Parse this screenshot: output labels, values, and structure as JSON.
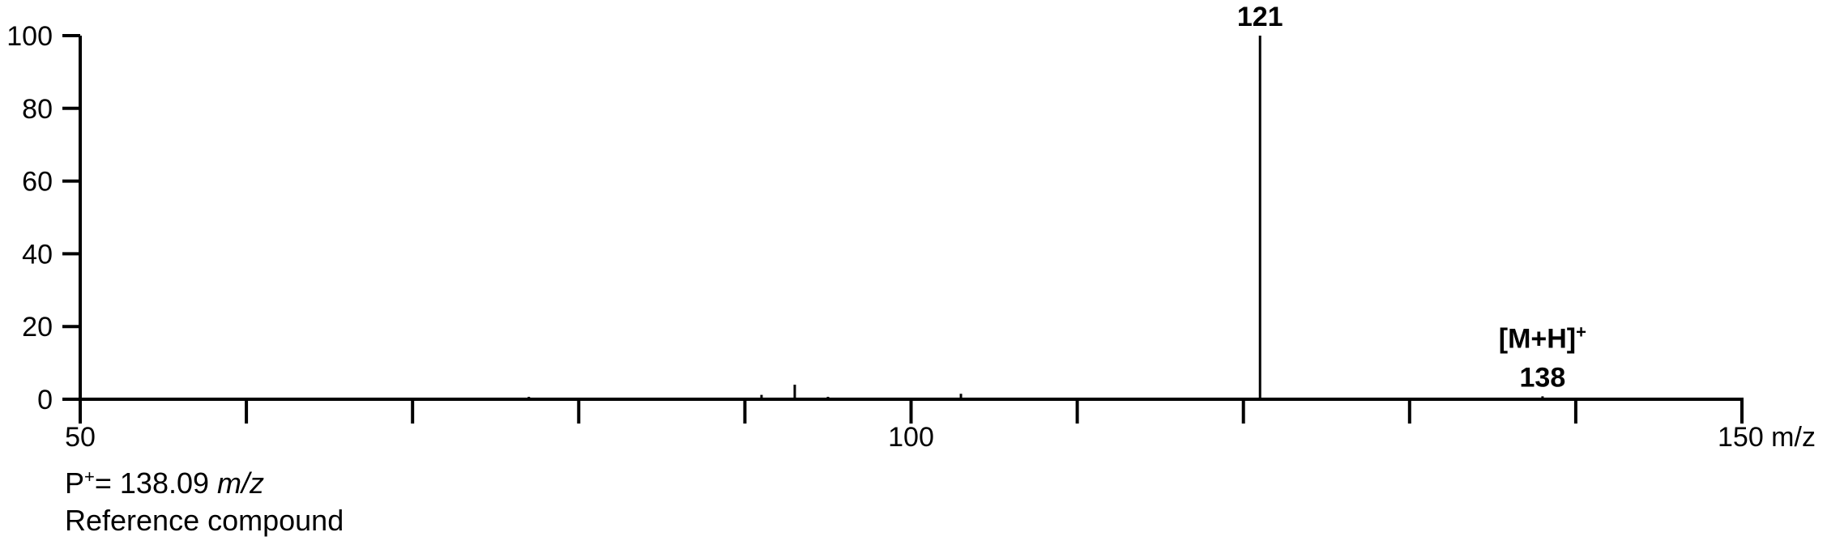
{
  "chart_data": {
    "type": "bar",
    "x_axis": {
      "min": 50,
      "max": 150,
      "ticks": [
        50,
        60,
        70,
        80,
        90,
        100,
        110,
        120,
        130,
        140,
        150
      ],
      "labeled_ticks": [
        "50",
        "100",
        "150"
      ],
      "unit_label": "m/z"
    },
    "y_axis": {
      "min": 0,
      "max": 100,
      "ticks": [
        "0",
        "20",
        "40",
        "60",
        "80",
        "100"
      ]
    },
    "peaks": [
      {
        "mz": 77,
        "intensity": 0.4
      },
      {
        "mz": 91,
        "intensity": 1.2
      },
      {
        "mz": 93,
        "intensity": 4
      },
      {
        "mz": 95,
        "intensity": 0.6
      },
      {
        "mz": 103,
        "intensity": 1.5
      },
      {
        "mz": 121,
        "intensity": 100
      },
      {
        "mz": 138,
        "intensity": 0.8
      }
    ],
    "annotations": [
      {
        "mz": 121,
        "lines": [
          "121"
        ]
      },
      {
        "mz": 138,
        "lines": [
          "[M+H]",
          "138"
        ],
        "superscript": "+"
      }
    ],
    "grid": false
  },
  "notes": {
    "precursor_prefix": "P",
    "precursor_sup": "+",
    "precursor_value": "= 138.09",
    "precursor_unit": "m/z",
    "compound": "Reference compound"
  }
}
